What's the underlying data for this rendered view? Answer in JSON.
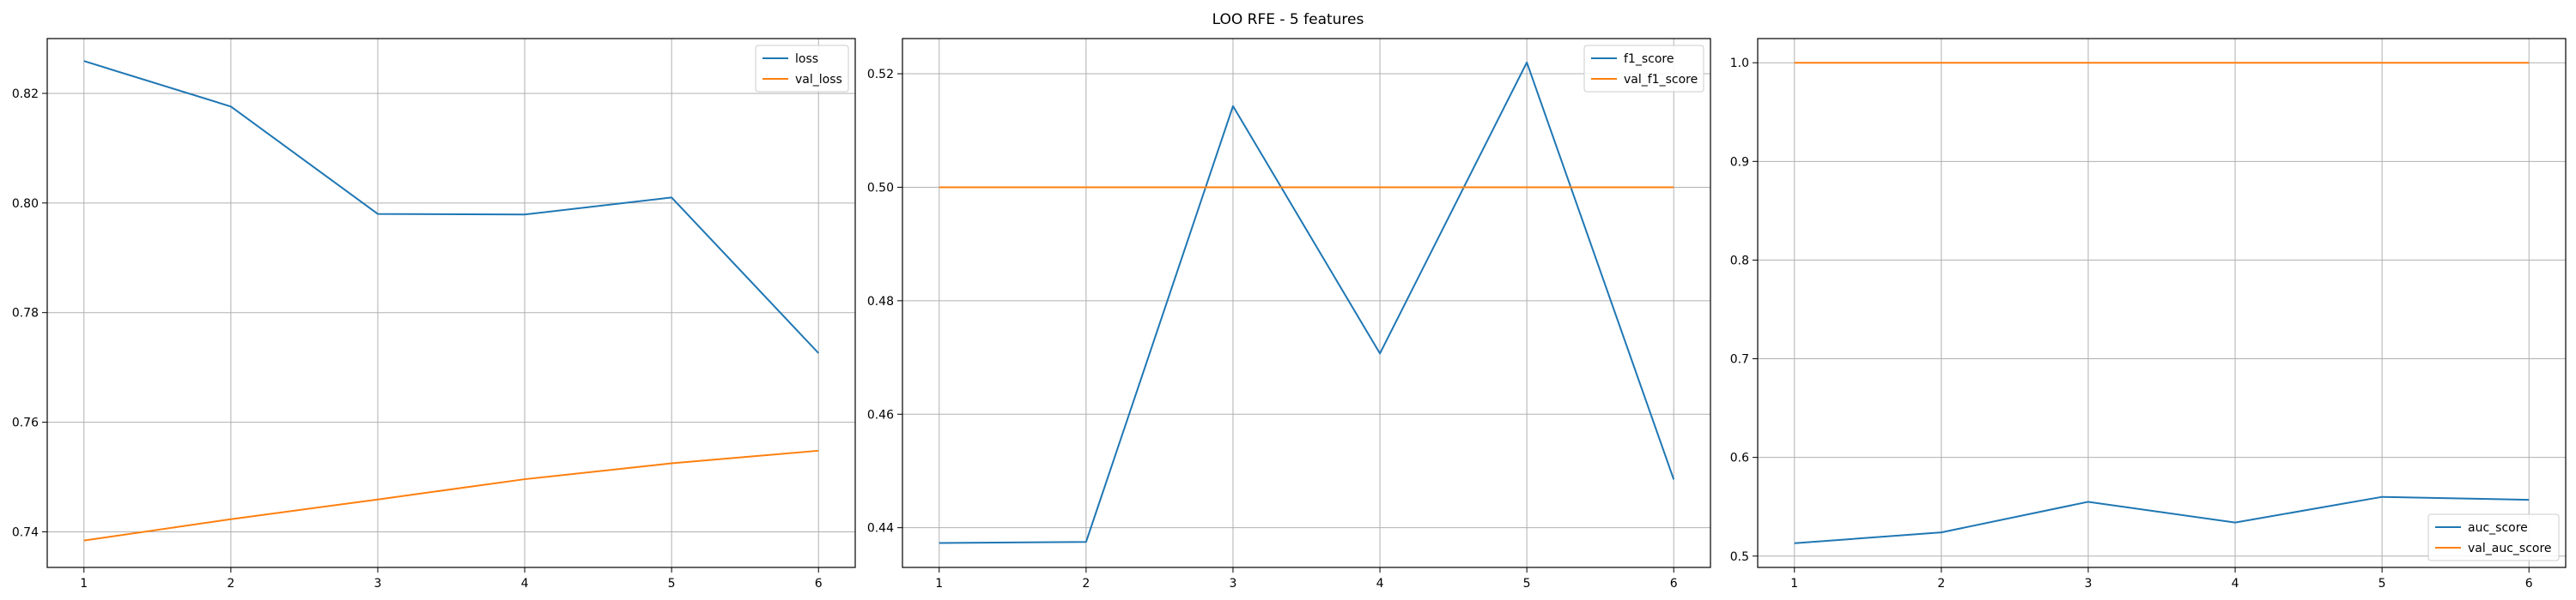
{
  "figure": {
    "title": "LOO RFE - 5 features"
  },
  "chart_data": [
    {
      "type": "line",
      "title": "",
      "xlabel": "",
      "ylabel": "",
      "x": [
        1,
        2,
        3,
        4,
        5,
        6
      ],
      "xticks": [
        "1",
        "2",
        "3",
        "4",
        "5",
        "6"
      ],
      "xlim": [
        0.75,
        6.25
      ],
      "ylim": [
        0.7335,
        0.83
      ],
      "yticks": [
        0.74,
        0.76,
        0.78,
        0.8,
        0.82
      ],
      "ytick_labels": [
        "0.74",
        "0.76",
        "0.78",
        "0.80",
        "0.82"
      ],
      "grid": true,
      "legend_position": "upper right",
      "series": [
        {
          "name": "loss",
          "color": "#1f77b4",
          "values": [
            0.8259,
            0.8176,
            0.798,
            0.7979,
            0.801,
            0.7726
          ]
        },
        {
          "name": "val_loss",
          "color": "#ff7f0e",
          "values": [
            0.7384,
            0.7423,
            0.7459,
            0.7496,
            0.7525,
            0.7548
          ]
        }
      ]
    },
    {
      "type": "line",
      "title": "",
      "xlabel": "",
      "ylabel": "",
      "x": [
        1,
        2,
        3,
        4,
        5,
        6
      ],
      "xticks": [
        "1",
        "2",
        "3",
        "4",
        "5",
        "6"
      ],
      "xlim": [
        0.75,
        6.25
      ],
      "ylim": [
        0.433,
        0.5262
      ],
      "yticks": [
        0.44,
        0.46,
        0.48,
        0.5,
        0.52
      ],
      "ytick_labels": [
        "0.44",
        "0.46",
        "0.48",
        "0.50",
        "0.52"
      ],
      "grid": true,
      "legend_position": "upper right",
      "series": [
        {
          "name": "f1_score",
          "color": "#1f77b4",
          "values": [
            0.4373,
            0.4375,
            0.5143,
            0.4707,
            0.522,
            0.4485
          ]
        },
        {
          "name": "val_f1_score",
          "color": "#ff7f0e",
          "values": [
            0.5,
            0.5,
            0.5,
            0.5,
            0.5,
            0.5
          ]
        }
      ]
    },
    {
      "type": "line",
      "title": "",
      "xlabel": "",
      "ylabel": "",
      "x": [
        1,
        2,
        3,
        4,
        5,
        6
      ],
      "xticks": [
        "1",
        "2",
        "3",
        "4",
        "5",
        "6"
      ],
      "xlim": [
        0.75,
        6.25
      ],
      "ylim": [
        0.4885,
        1.0245
      ],
      "yticks": [
        0.5,
        0.6,
        0.7,
        0.8,
        0.9,
        1.0
      ],
      "ytick_labels": [
        "0.5",
        "0.6",
        "0.7",
        "0.8",
        "0.9",
        "1.0"
      ],
      "grid": true,
      "legend_position": "lower right",
      "series": [
        {
          "name": "auc_score",
          "color": "#1f77b4",
          "values": [
            0.513,
            0.524,
            0.555,
            0.534,
            0.56,
            0.557
          ]
        },
        {
          "name": "val_auc_score",
          "color": "#ff7f0e",
          "values": [
            1.0,
            1.0,
            1.0,
            1.0,
            1.0,
            1.0
          ]
        }
      ]
    }
  ]
}
